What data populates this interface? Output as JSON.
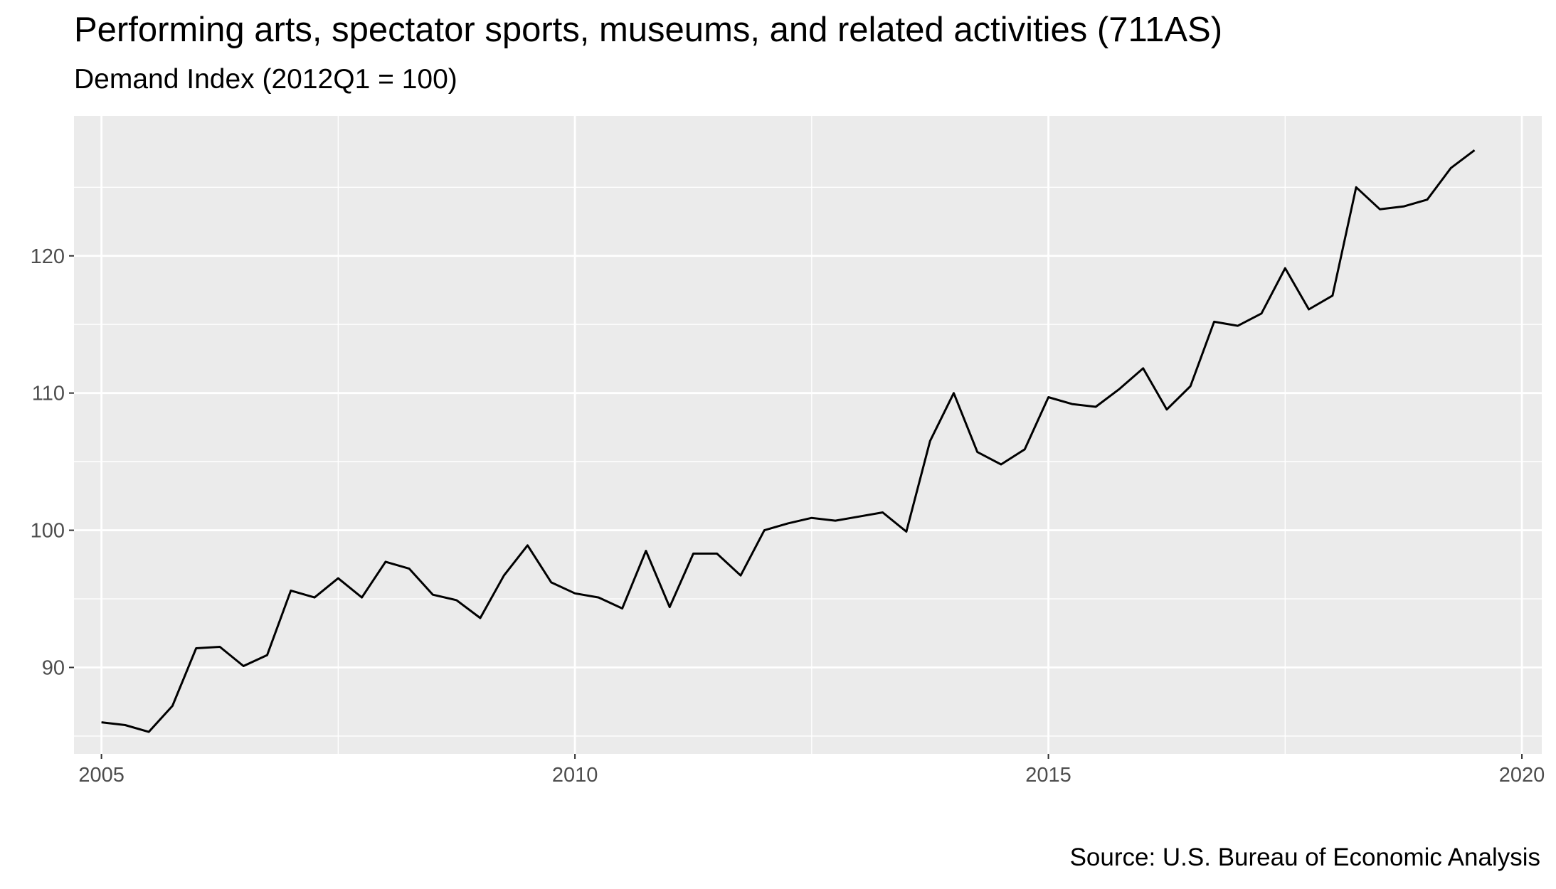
{
  "title": "Performing arts, spectator sports, museums, and related activities (711AS)",
  "subtitle": "Demand Index (2012Q1 = 100)",
  "source": "Source: U.S. Bureau of Economic Analysis",
  "chart_data": {
    "type": "line",
    "title": "Performing arts, spectator sports, museums, and related activities (711AS)",
    "subtitle": "Demand Index (2012Q1 = 100)",
    "xlabel": "",
    "ylabel": "",
    "xlim": [
      2004.71,
      2020.21
    ],
    "ylim": [
      83.7,
      130.2
    ],
    "x_ticks": [
      2005,
      2010,
      2015,
      2020
    ],
    "x_tick_labels": [
      "2005",
      "2010",
      "2015",
      "2020"
    ],
    "y_ticks": [
      90,
      100,
      110,
      120
    ],
    "y_tick_labels": [
      "90",
      "100",
      "110",
      "120"
    ],
    "grid": true,
    "legend": "none",
    "colors": {
      "panel": "#ebebeb",
      "grid": "#ffffff",
      "line": "#000000"
    },
    "series": [
      {
        "x": [
          2005.0,
          2005.25,
          2005.5,
          2005.75,
          2006.0,
          2006.25,
          2006.5,
          2006.75,
          2007.0,
          2007.25,
          2007.5,
          2007.75,
          2008.0,
          2008.25,
          2008.5,
          2008.75,
          2009.0,
          2009.25,
          2009.5,
          2009.75,
          2010.0,
          2010.25,
          2010.5,
          2010.75,
          2011.0,
          2011.25,
          2011.5,
          2011.75,
          2012.0,
          2012.25,
          2012.5,
          2012.75,
          2013.0,
          2013.25,
          2013.5,
          2013.75,
          2014.0,
          2014.25,
          2014.5,
          2014.75,
          2015.0,
          2015.25,
          2015.5,
          2015.75,
          2016.0,
          2016.25,
          2016.5,
          2016.75,
          2017.0,
          2017.25,
          2017.5,
          2017.75,
          2018.0,
          2018.25,
          2018.5,
          2018.75,
          2019.0,
          2019.25,
          2019.5
        ],
        "values": [
          86.0,
          85.8,
          85.3,
          87.2,
          91.4,
          91.5,
          90.1,
          90.9,
          95.6,
          95.1,
          96.5,
          95.1,
          97.7,
          97.2,
          95.3,
          94.9,
          93.6,
          96.7,
          98.9,
          96.2,
          95.4,
          95.1,
          94.3,
          98.5,
          94.4,
          98.3,
          98.3,
          96.7,
          100.0,
          100.5,
          100.9,
          100.7,
          101.0,
          101.3,
          99.9,
          106.5,
          110.0,
          105.7,
          104.8,
          105.9,
          109.7,
          109.2,
          109.0,
          110.3,
          111.8,
          108.8,
          110.5,
          115.2,
          114.9,
          115.8,
          119.1,
          116.1,
          117.1,
          125.0,
          123.4,
          123.6,
          124.1,
          126.4,
          127.7
        ]
      }
    ]
  }
}
